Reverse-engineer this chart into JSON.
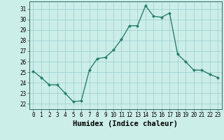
{
  "x": [
    0,
    1,
    2,
    3,
    4,
    5,
    6,
    7,
    8,
    9,
    10,
    11,
    12,
    13,
    14,
    15,
    16,
    17,
    18,
    19,
    20,
    21,
    22,
    23
  ],
  "y": [
    25.1,
    24.5,
    23.8,
    23.8,
    23.0,
    22.2,
    22.3,
    25.2,
    26.3,
    26.4,
    27.1,
    28.1,
    29.4,
    29.4,
    31.3,
    30.3,
    30.2,
    30.6,
    26.7,
    26.0,
    25.2,
    25.2,
    24.8,
    24.5
  ],
  "line_color": "#2a7f6f",
  "marker": "D",
  "marker_size": 2.0,
  "bg_color": "#cceee8",
  "grid_color": "#99cccc",
  "xlabel": "Humidex (Indice chaleur)",
  "ylim": [
    21.5,
    31.7
  ],
  "xlim": [
    -0.5,
    23.5
  ],
  "yticks": [
    22,
    23,
    24,
    25,
    26,
    27,
    28,
    29,
    30,
    31
  ],
  "xticks": [
    0,
    1,
    2,
    3,
    4,
    5,
    6,
    7,
    8,
    9,
    10,
    11,
    12,
    13,
    14,
    15,
    16,
    17,
    18,
    19,
    20,
    21,
    22,
    23
  ],
  "tick_fontsize": 5.5,
  "label_fontsize": 7.5
}
